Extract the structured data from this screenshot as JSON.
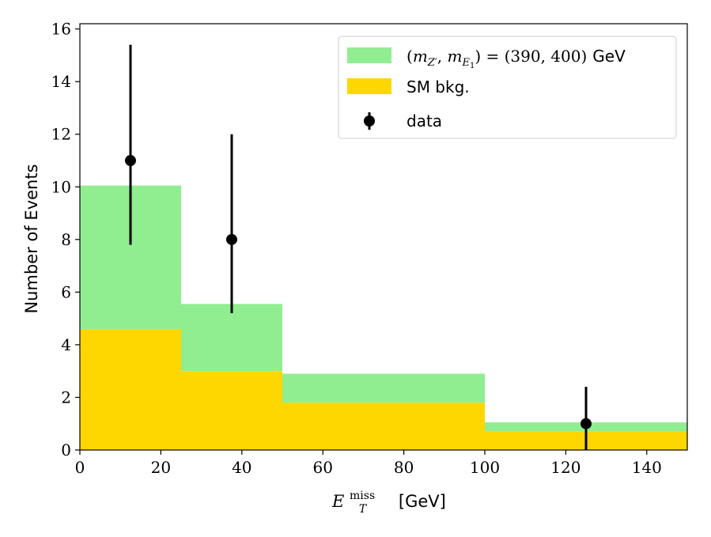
{
  "chart_data": {
    "type": "bar",
    "title": "",
    "xlabel": "E_T^miss [GeV]",
    "xlabel_parts": {
      "symbol": "E",
      "subscript": "T",
      "superscript": "miss",
      "unit": "[GeV]"
    },
    "ylabel": "Number of Events",
    "xlim": [
      0,
      150
    ],
    "ylim": [
      0,
      16.2
    ],
    "xticks": [
      0,
      20,
      40,
      60,
      80,
      100,
      120,
      140
    ],
    "yticks": [
      0,
      2,
      4,
      6,
      8,
      10,
      12,
      14,
      16
    ],
    "grid": false,
    "legend_position": "top-right",
    "bins": [
      [
        0,
        25
      ],
      [
        25,
        50
      ],
      [
        50,
        100
      ],
      [
        100,
        150
      ]
    ],
    "series": [
      {
        "name": "SM bkg.",
        "kind": "stacked-histogram",
        "color": "#ffd700",
        "values": [
          4.6,
          3.0,
          1.8,
          0.7
        ]
      },
      {
        "name": "(m_{Z'}, m_{E_1}) = (390, 400) GeV",
        "kind": "stacked-histogram",
        "color": "#90ee90",
        "values": [
          5.45,
          2.55,
          1.1,
          0.35
        ]
      },
      {
        "name": "data",
        "kind": "errorbar",
        "color": "#000000",
        "points": [
          {
            "x": 12.5,
            "y": 11,
            "err_low": 3.2,
            "err_high": 4.4
          },
          {
            "x": 37.5,
            "y": 8,
            "err_low": 2.8,
            "err_high": 4.0
          },
          {
            "x": 125,
            "y": 1,
            "err_low": 1.0,
            "err_high": 1.4
          }
        ]
      }
    ],
    "legend": {
      "signal": {
        "prefix": "(",
        "m1": "m",
        "m1_sub": "Z′",
        "m2": "m",
        "m2_sub_main": "E",
        "m2_sub_sub": "1",
        "values": ") = (390, 400)",
        "unit": "GeV"
      },
      "background": "SM bkg.",
      "data": "data"
    }
  }
}
